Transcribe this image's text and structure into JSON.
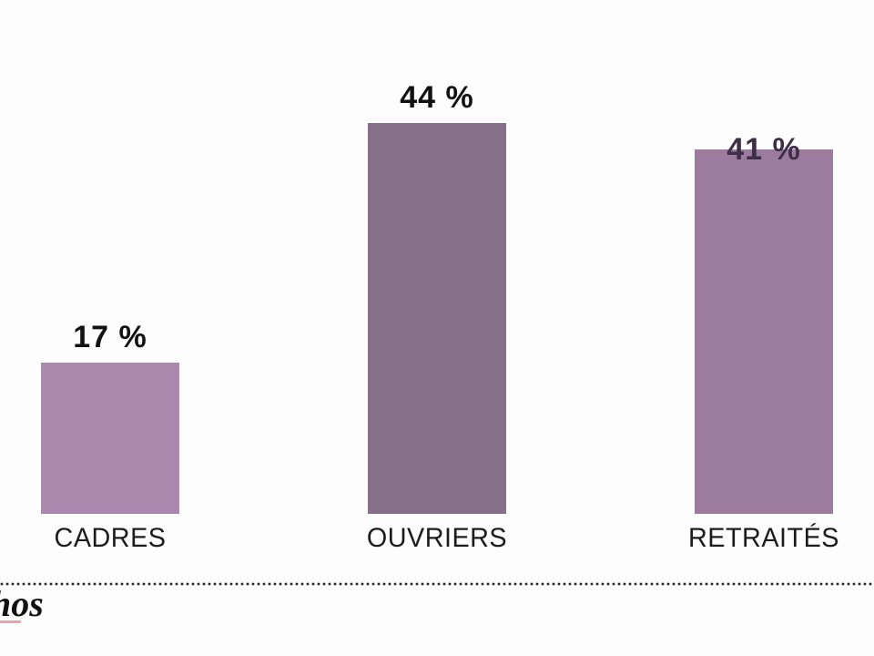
{
  "chart_data": {
    "type": "bar",
    "categories": [
      "CADRES",
      "OUVRIERS",
      "RETRAITÉS"
    ],
    "values": [
      17,
      44,
      41
    ],
    "value_labels": [
      "17 %",
      "44 %",
      "41 %"
    ],
    "bar_colors": [
      "#ab88ae",
      "#87708a",
      "#9b7b9e"
    ],
    "value_label_colors": [
      "#111111",
      "#111111",
      "#3f2e47"
    ],
    "value_label_overlaps_bar": [
      false,
      false,
      true
    ],
    "title": "",
    "xlabel": "",
    "ylabel": "",
    "ylim": [
      0,
      44
    ],
    "grid": false,
    "legend": false,
    "background": "#fdfdfd"
  },
  "footer": {
    "divider_style": "dotted",
    "divider_color": "#2e2e2e",
    "logo": {
      "visible_text": "hos",
      "underline_color": "#e9a3ac"
    }
  }
}
